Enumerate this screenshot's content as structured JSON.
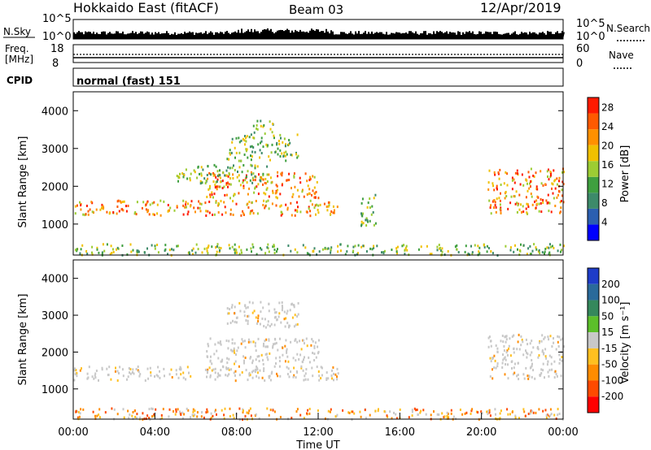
{
  "header": {
    "title": "Hokkaido East (fitACF)",
    "beam": "Beam 03",
    "date": "12/Apr/2019"
  },
  "chart_data": [
    {
      "type": "line",
      "panel": "noise",
      "left_label": "N.Sky",
      "right_label": "N.Search",
      "left_ticks": [
        "10^5",
        "10^0"
      ],
      "right_ticks": [
        "10^5",
        "10^0"
      ]
    },
    {
      "type": "line",
      "panel": "frequency",
      "left_label_lines": [
        "Freq.",
        "[MHz]"
      ],
      "right_label": "Nave",
      "left_ticks": [
        18,
        8
      ],
      "right_ticks": [
        60,
        0
      ]
    },
    {
      "type": "heatmap",
      "panel": "cpid",
      "label": "CPID",
      "text": "normal (fast) 151"
    },
    {
      "type": "heatmap",
      "panel": "power",
      "ylabel": "Slant Range [km]",
      "ylim": [
        180,
        4500
      ],
      "yticks": [
        1000,
        2000,
        3000,
        4000
      ],
      "colorbar": {
        "label": "Power [dB]",
        "ticks": [
          4,
          8,
          12,
          16,
          20,
          24,
          28
        ],
        "range": [
          0,
          30
        ],
        "colors": [
          "#0000ff",
          "#2b5fb0",
          "#3d8a6a",
          "#3f9f3f",
          "#9ccc33",
          "#f0c000",
          "#ff9000",
          "#ff5a00",
          "#ff1a00"
        ]
      },
      "echo_regions": [
        {
          "t": [
            0.0,
            13.0
          ],
          "r": [
            1250,
            1650
          ],
          "level": "high"
        },
        {
          "t": [
            6.5,
            12.0
          ],
          "r": [
            1700,
            2400
          ],
          "level": "high"
        },
        {
          "t": [
            7.5,
            11.0
          ],
          "r": [
            2700,
            3400
          ],
          "level": "low"
        },
        {
          "t": [
            8.8,
            9.8
          ],
          "r": [
            3400,
            3800
          ],
          "level": "low"
        },
        {
          "t": [
            5.0,
            9.5
          ],
          "r": [
            2100,
            2600
          ],
          "level": "low"
        },
        {
          "t": [
            14.0,
            14.8
          ],
          "r": [
            900,
            1800
          ],
          "level": "low"
        },
        {
          "t": [
            20.3,
            24.0
          ],
          "r": [
            1300,
            2500
          ],
          "level": "high"
        },
        {
          "t": [
            0.0,
            24.0
          ],
          "r": [
            200,
            500
          ],
          "level": "low"
        }
      ]
    },
    {
      "type": "heatmap",
      "panel": "velocity",
      "ylabel": "Slant Range [km]",
      "ylim": [
        180,
        4500
      ],
      "yticks": [
        1000,
        2000,
        3000,
        4000
      ],
      "xticks": [
        "00:00",
        "04:00",
        "08:00",
        "12:00",
        "16:00",
        "20:00",
        "00:00"
      ],
      "xlabel": "Time UT",
      "colorbar": {
        "label": "Velocity [m s⁻¹]",
        "ticks": [
          200,
          100,
          50,
          15,
          -15,
          -50,
          -100,
          -200
        ],
        "colors": [
          "#1e3cc8",
          "#2a6a9a",
          "#35885c",
          "#5cbf2a",
          "#c8c8c8",
          "#ffc020",
          "#ff8c00",
          "#ff4a00",
          "#ff0000"
        ]
      },
      "echo_regions": [
        {
          "t": [
            0.0,
            13.0
          ],
          "r": [
            1250,
            1650
          ],
          "level": "gray"
        },
        {
          "t": [
            6.5,
            12.0
          ],
          "r": [
            1700,
            2400
          ],
          "level": "gray"
        },
        {
          "t": [
            7.5,
            11.0
          ],
          "r": [
            2700,
            3400
          ],
          "level": "gray"
        },
        {
          "t": [
            20.3,
            24.0
          ],
          "r": [
            1300,
            2500
          ],
          "level": "gray"
        },
        {
          "t": [
            0.0,
            24.0
          ],
          "r": [
            200,
            500
          ],
          "level": "orange"
        }
      ]
    }
  ]
}
